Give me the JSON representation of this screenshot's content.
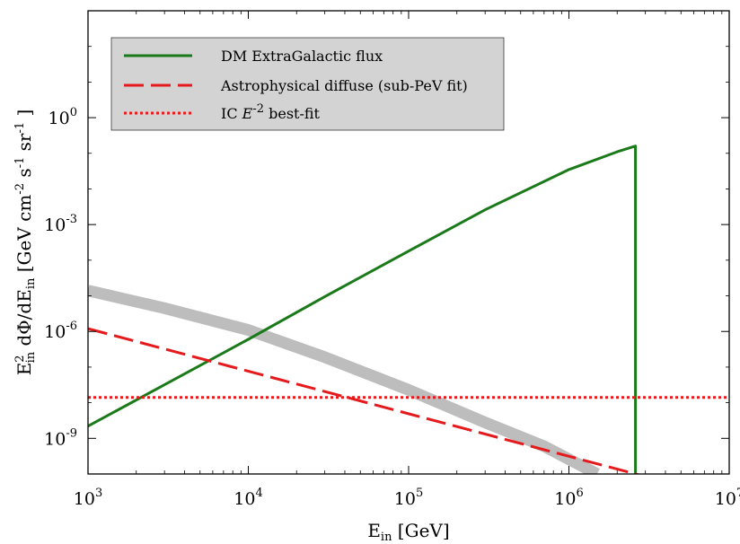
{
  "chart_data": {
    "type": "line",
    "xscale": "log",
    "yscale": "log",
    "xlim": [
      1000,
      10000000
    ],
    "ylim": [
      1e-10,
      1000
    ],
    "xticks": [
      {
        "value": 1000,
        "base": "10",
        "exp": "3"
      },
      {
        "value": 10000,
        "base": "10",
        "exp": "4"
      },
      {
        "value": 100000,
        "base": "10",
        "exp": "5"
      },
      {
        "value": 1000000,
        "base": "10",
        "exp": "6"
      },
      {
        "value": 10000000,
        "base": "10",
        "exp": "7"
      }
    ],
    "yticks": [
      {
        "value": 1e-09,
        "base": "10",
        "exp": "-9"
      },
      {
        "value": 1e-06,
        "base": "10",
        "exp": "-6"
      },
      {
        "value": 0.001,
        "base": "10",
        "exp": "-3"
      },
      {
        "value": 1,
        "base": "10",
        "exp": "0"
      }
    ],
    "xlabel": {
      "main": "E",
      "sub": "in",
      "rest": " [GeV]"
    },
    "ylabel": {
      "e": "E",
      "e_sup": "2",
      "e_sub": "in",
      "mid": " dΦ/dE",
      "mid_sub": "in",
      "unit": " [GeV cm",
      "cm_exp": "-2",
      "s": " s",
      "s_exp": "-1",
      "sr": " sr",
      "sr_exp": "-1",
      "close": " ]"
    },
    "legend": {
      "position": "top-left",
      "background": "#d3d3d3"
    },
    "grid": false,
    "series": [
      {
        "name": "DM ExtraGalactic flux",
        "color": "#1a7a1a",
        "style": "solid",
        "x": [
          1000,
          3000,
          10000,
          30000,
          100000,
          300000,
          1000000,
          2000000,
          2600000,
          2600000
        ],
        "y": [
          2.2e-09,
          3.2e-08,
          6e-07,
          9.5e-06,
          0.00018,
          0.0026,
          0.035,
          0.11,
          0.16,
          1e-10
        ]
      },
      {
        "name": "Astrophysical diffuse (sub-PeV fit)",
        "color": "#e41a1c",
        "style": "dashed",
        "x": [
          1000,
          10000000
        ],
        "y": [
          1.2e-06,
          2e-11
        ]
      },
      {
        "name": "IC E^-2 best-fit",
        "legend_label": {
          "pre": "IC ",
          "e": "E",
          "exp": "-2",
          "post": " best-fit"
        },
        "color": "#e41a1c",
        "style": "dotted",
        "x": [
          1000,
          10000000
        ],
        "y": [
          1.4e-08,
          1.4e-08
        ]
      },
      {
        "color": "#bdbdbd",
        "style": "band",
        "x": [
          1000,
          3000,
          10000,
          30000,
          100000,
          300000,
          700000,
          1500000
        ],
        "y": [
          1.4e-05,
          4.5e-06,
          1.1e-06,
          1.9e-07,
          2.3e-08,
          2.8e-09,
          6e-10,
          1e-10
        ]
      }
    ]
  }
}
